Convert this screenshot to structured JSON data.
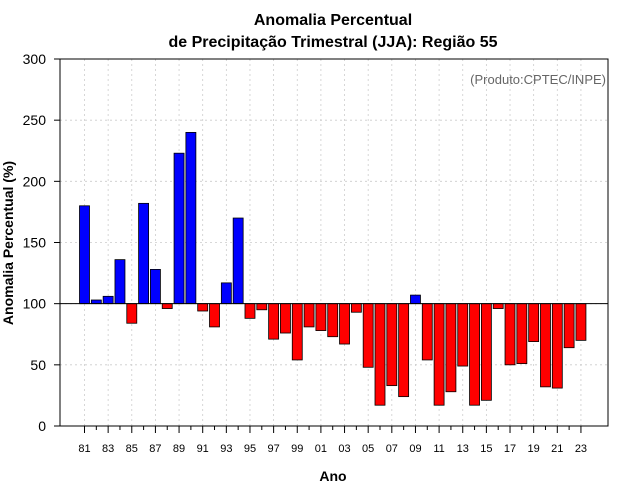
{
  "chart_data": {
    "type": "bar",
    "title_line1": "Anomalia Percentual",
    "title_line2": "de Precipitação Trimestral (JJA): Região 55",
    "xlabel": "Ano",
    "ylabel": "Anomalia Percentual (%)",
    "annotation": "(Produto:CPTEC/INPE)",
    "ylim": [
      0,
      300
    ],
    "yticks": [
      "0",
      "50",
      "100",
      "150",
      "200",
      "250",
      "300"
    ],
    "baseline": 100,
    "grid": true,
    "colors": {
      "above": "#0000ff",
      "below": "#ff0000",
      "edge": "#000000",
      "grid": "#cccccc"
    },
    "categories": [
      "81",
      "82",
      "83",
      "84",
      "85",
      "86",
      "87",
      "88",
      "89",
      "90",
      "91",
      "92",
      "93",
      "94",
      "95",
      "96",
      "97",
      "98",
      "99",
      "00",
      "01",
      "02",
      "03",
      "04",
      "05",
      "06",
      "07",
      "08",
      "09",
      "10",
      "11",
      "12",
      "13",
      "14",
      "15",
      "16",
      "17",
      "18",
      "19",
      "20",
      "21",
      "22",
      "23"
    ],
    "tick_labels": [
      "81",
      "83",
      "85",
      "87",
      "89",
      "91",
      "93",
      "95",
      "97",
      "99",
      "01",
      "03",
      "05",
      "07",
      "09",
      "11",
      "13",
      "15",
      "17",
      "19",
      "21",
      "23"
    ],
    "values": [
      180,
      103,
      106,
      136,
      84,
      182,
      128,
      96,
      223,
      240,
      94,
      81,
      117,
      170,
      88,
      95,
      71,
      76,
      54,
      81,
      78,
      73,
      67,
      93,
      48,
      17,
      33,
      24,
      107,
      54,
      17,
      28,
      49,
      17,
      21,
      96,
      50,
      51,
      69,
      32,
      31,
      64,
      70
    ]
  }
}
